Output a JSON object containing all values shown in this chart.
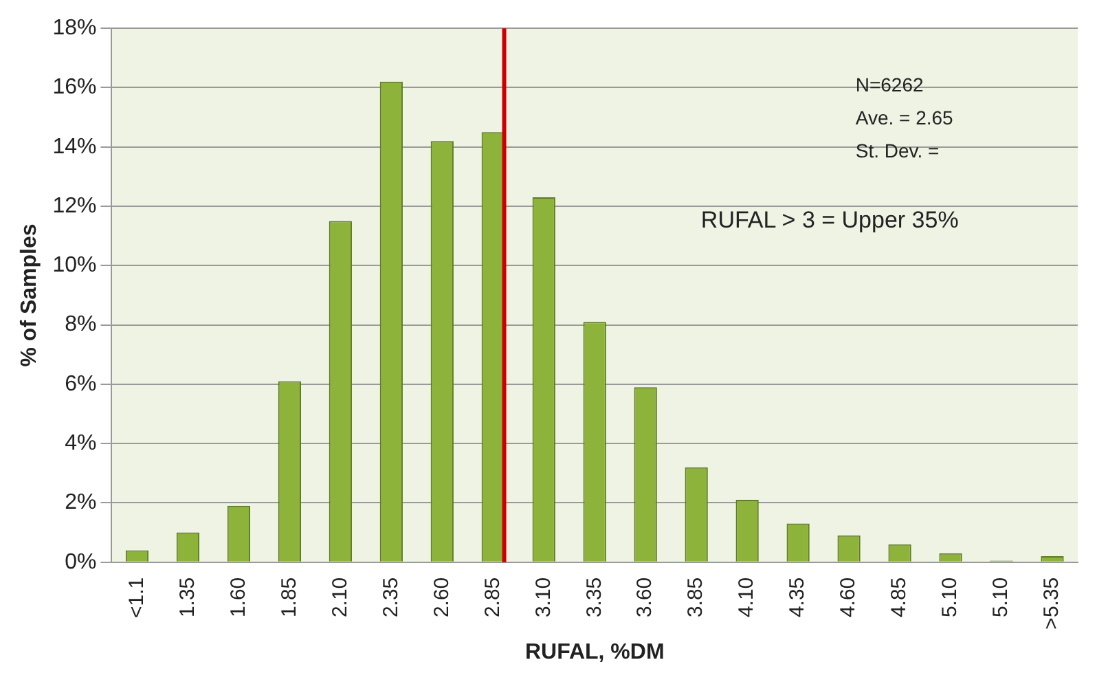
{
  "chart_data": {
    "type": "bar",
    "xlabel": "RUFAL, %DM",
    "ylabel": "% of Samples",
    "categories": [
      "<1.1",
      "1.35",
      "1.60",
      "1.85",
      "2.10",
      "2.35",
      "2.60",
      "2.85",
      "3.10",
      "3.35",
      "3.60",
      "3.85",
      "4.10",
      "4.35",
      "4.60",
      "4.85",
      "5.10",
      "5.10",
      ">5.35"
    ],
    "values": [
      0.4,
      1.0,
      1.9,
      6.1,
      11.5,
      16.2,
      14.2,
      14.5,
      12.3,
      8.1,
      5.9,
      3.2,
      2.1,
      1.3,
      0.9,
      0.6,
      0.3,
      0.05,
      0.2
    ],
    "color": "#8db33a",
    "ylim": [
      0,
      18
    ],
    "yticks": [
      {
        "value": 0,
        "label": "0%"
      },
      {
        "value": 2,
        "label": "2%"
      },
      {
        "value": 4,
        "label": "4%"
      },
      {
        "value": 6,
        "label": "6%"
      },
      {
        "value": 8,
        "label": "8%"
      },
      {
        "value": 10,
        "label": "10%"
      },
      {
        "value": 12,
        "label": "12%"
      },
      {
        "value": 14,
        "label": "14%"
      },
      {
        "value": 16,
        "label": "16%"
      },
      {
        "value": 18,
        "label": "18%"
      }
    ],
    "grid": "y",
    "legend": false,
    "ref_lines": [
      {
        "axis": "x",
        "value": "2.85",
        "color": "#cc0000"
      }
    ],
    "annotations": [
      "N=6262",
      "Ave. = 2.65",
      "St. Dev. =",
      "RUFAL > 3 = Upper 35%"
    ]
  }
}
